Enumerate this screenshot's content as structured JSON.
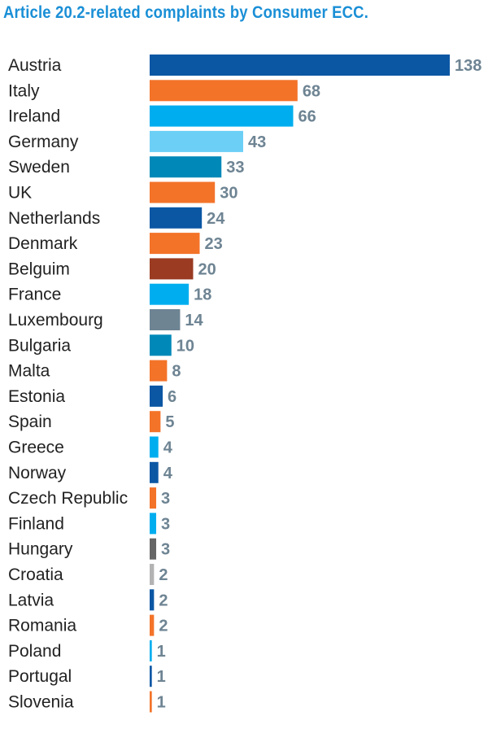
{
  "chart_data": {
    "type": "bar",
    "orientation": "horizontal",
    "title": "Article 20.2-related complaints by Consumer ECC.",
    "categories": [
      "Austria",
      "Italy",
      "Ireland",
      "Germany",
      "Sweden",
      "UK",
      "Netherlands",
      "Denmark",
      "Belguim",
      "France",
      "Luxembourg",
      "Bulgaria",
      "Malta",
      "Estonia",
      "Spain",
      "Greece",
      "Norway",
      "Czech Republic",
      "Finland",
      "Hungary",
      "Croatia",
      "Latvia",
      "Romania",
      "Poland",
      "Portugal",
      "Slovenia"
    ],
    "values": [
      138,
      68,
      66,
      43,
      33,
      30,
      24,
      23,
      20,
      18,
      14,
      10,
      8,
      6,
      5,
      4,
      4,
      3,
      3,
      3,
      2,
      2,
      2,
      1,
      1,
      1
    ],
    "value_labels": [
      "138",
      "68",
      "66",
      "43",
      "33",
      "30",
      "24",
      "23",
      "20",
      "18",
      "14",
      "10",
      "8",
      "6",
      "5",
      "4",
      "4",
      "3",
      "3",
      "3",
      "2",
      "2",
      "2",
      "1",
      "1",
      "1"
    ],
    "colors": [
      "#0b57a4",
      "#f37329",
      "#00aeef",
      "#6ccff6",
      "#0089b8",
      "#f37329",
      "#0b57a4",
      "#f37329",
      "#9a3b22",
      "#00aeef",
      "#6e8493",
      "#0089b8",
      "#f37329",
      "#0b57a4",
      "#f37329",
      "#00aeef",
      "#0b57a4",
      "#f37329",
      "#00aeef",
      "#666666",
      "#b3b3b3",
      "#0b57a4",
      "#f37329",
      "#00aeef",
      "#0b57a4",
      "#f37329"
    ],
    "xlim": [
      0,
      138
    ],
    "xlabel": "",
    "ylabel": "",
    "grid": false,
    "legend": "none"
  }
}
